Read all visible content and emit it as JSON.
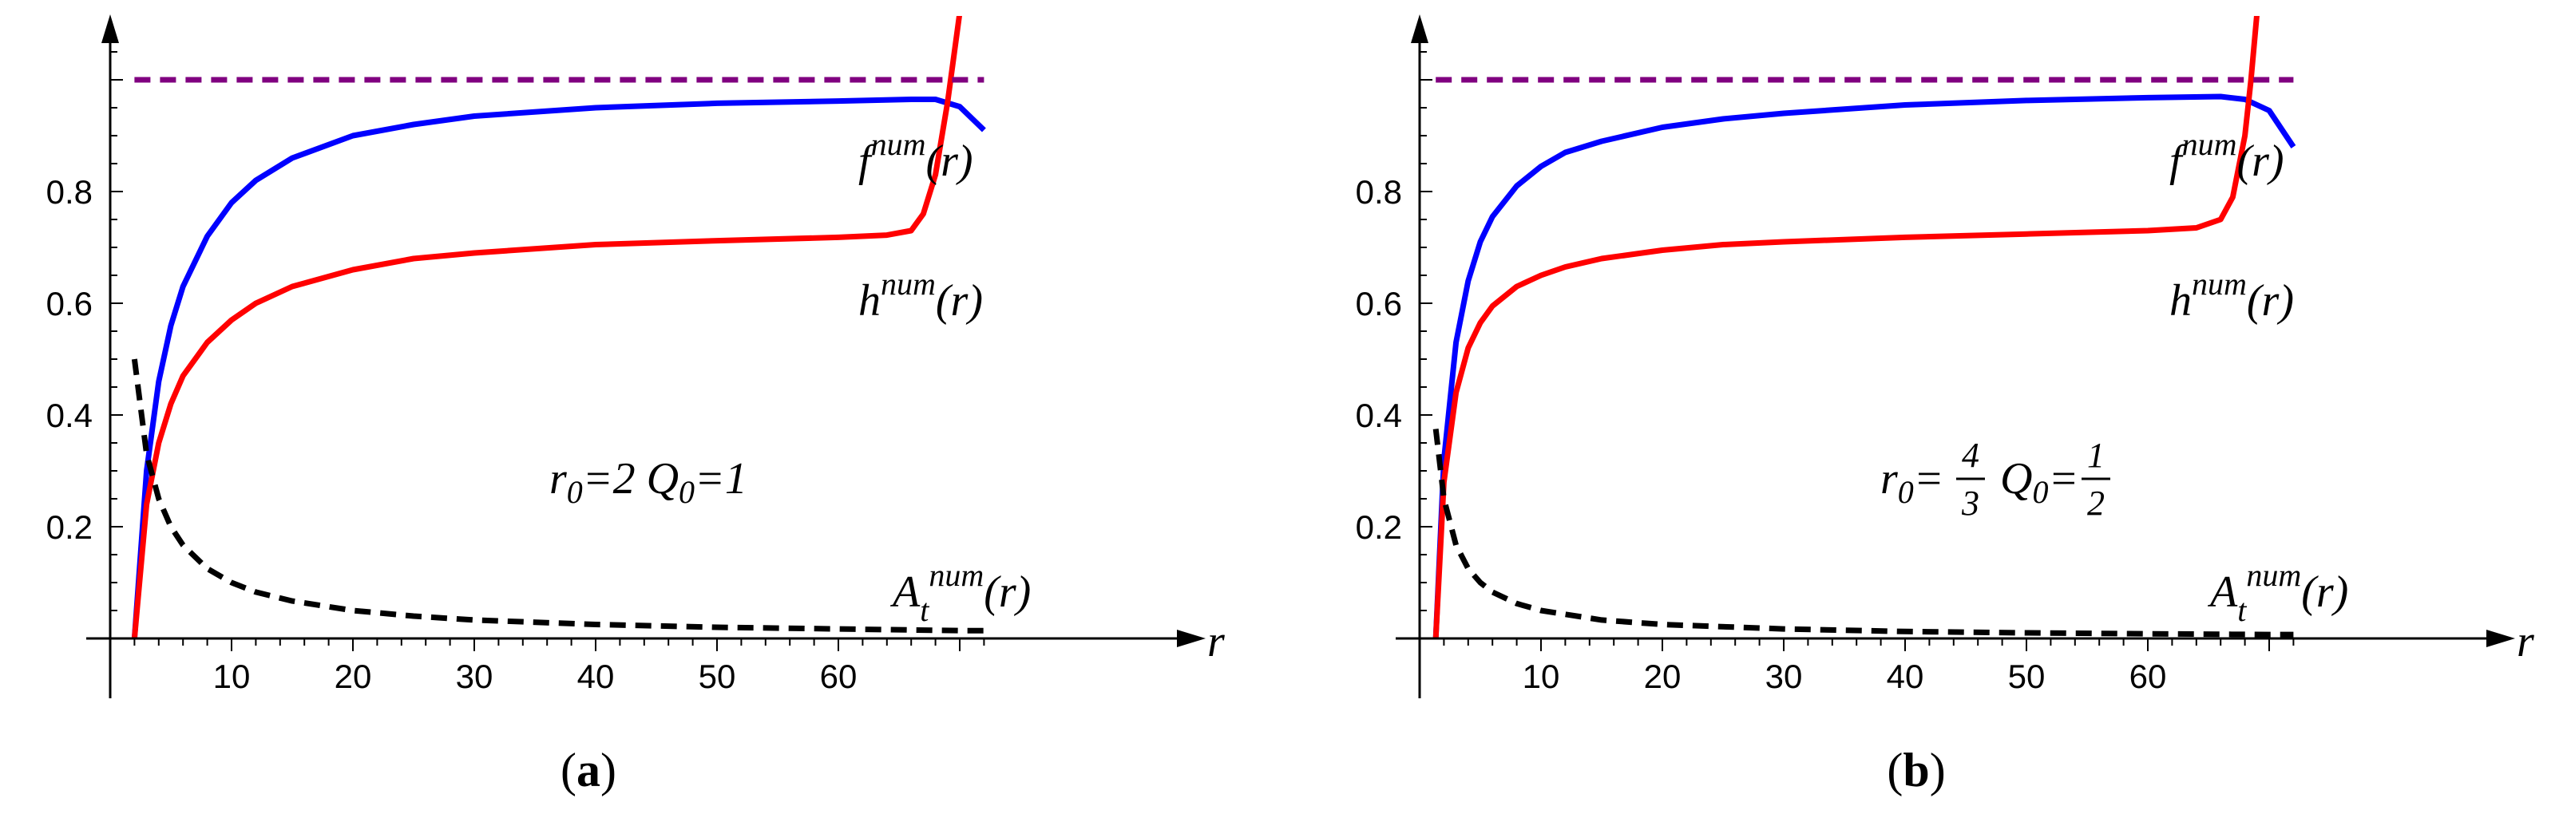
{
  "chart_data": [
    {
      "type": "line",
      "panel": "(a)",
      "panel_letter": "a",
      "xlabel": "r",
      "ylabel": "",
      "xlim": [
        0,
        78
      ],
      "ylim": [
        0,
        1.07
      ],
      "x_ticks": [
        10,
        20,
        30,
        40,
        50,
        60
      ],
      "y_ticks": [
        0.2,
        0.4,
        0.6,
        0.8
      ],
      "x_tick_labels": [
        "10",
        "20",
        "30",
        "40",
        "50",
        "60"
      ],
      "y_tick_labels": [
        "0.2",
        "0.4",
        "0.6",
        "0.8"
      ],
      "params": {
        "r0_label": "r",
        "r0_sub": "0",
        "r0_value": "=2",
        "q0_label": "Q",
        "q0_sub": "0",
        "q0_value": "=1"
      },
      "series": [
        {
          "name": "f^num(r)",
          "label_base": "f",
          "label_sup": "num",
          "label_arg": "(r)",
          "color": "#0000ff",
          "style": "solid",
          "x": [
            2,
            3,
            4,
            5,
            6,
            8,
            10,
            12,
            15,
            20,
            25,
            30,
            40,
            50,
            60,
            66,
            68,
            70,
            72
          ],
          "y": [
            0,
            0.3,
            0.46,
            0.56,
            0.63,
            0.72,
            0.78,
            0.82,
            0.86,
            0.9,
            0.92,
            0.935,
            0.95,
            0.958,
            0.962,
            0.965,
            0.965,
            0.952,
            0.91
          ]
        },
        {
          "name": "h^num(r)",
          "label_base": "h",
          "label_sup": "num",
          "label_arg": "(r)",
          "color": "#ff0000",
          "style": "solid",
          "x": [
            2,
            3,
            4,
            5,
            6,
            8,
            10,
            12,
            15,
            20,
            25,
            30,
            40,
            50,
            60,
            64,
            66,
            67,
            68,
            69,
            69.5,
            70
          ],
          "y": [
            0,
            0.24,
            0.35,
            0.42,
            0.47,
            0.53,
            0.57,
            0.6,
            0.63,
            0.66,
            0.68,
            0.69,
            0.705,
            0.712,
            0.718,
            0.722,
            0.73,
            0.76,
            0.83,
            0.96,
            1.04,
            1.12
          ]
        },
        {
          "name": "A_t^num(r)",
          "label_base": "A",
          "label_sub": "t",
          "label_sup": "num",
          "label_arg": "(r)",
          "color": "#000000",
          "style": "dashed",
          "x": [
            2,
            3,
            4,
            5,
            6,
            8,
            10,
            12,
            15,
            20,
            25,
            30,
            40,
            50,
            60,
            70,
            72
          ],
          "y": [
            0.5,
            0.33,
            0.25,
            0.2,
            0.167,
            0.125,
            0.1,
            0.083,
            0.067,
            0.05,
            0.04,
            0.033,
            0.025,
            0.02,
            0.017,
            0.014,
            0.014
          ]
        },
        {
          "name": "asymptote",
          "color": "#800080",
          "style": "dashed",
          "x": [
            2,
            72
          ],
          "y": [
            1.0,
            1.0
          ]
        }
      ]
    },
    {
      "type": "line",
      "panel": "(b)",
      "panel_letter": "b",
      "xlabel": "r",
      "ylabel": "",
      "xlim": [
        0,
        78
      ],
      "ylim": [
        0,
        1.07
      ],
      "x_ticks": [
        10,
        20,
        30,
        40,
        50,
        60
      ],
      "y_ticks": [
        0.2,
        0.4,
        0.6,
        0.8
      ],
      "x_tick_labels": [
        "10",
        "20",
        "30",
        "40",
        "50",
        "60"
      ],
      "y_tick_labels": [
        "0.2",
        "0.4",
        "0.6",
        "0.8"
      ],
      "params": {
        "r0_label": "r",
        "r0_sub": "0",
        "r0_eq": "=",
        "r0_num": "4",
        "r0_den": "3",
        "q0_label": "Q",
        "q0_sub": "0",
        "q0_eq": "=",
        "q0_num": "1",
        "q0_den": "2"
      },
      "series": [
        {
          "name": "f^num(r)",
          "label_base": "f",
          "label_sup": "num",
          "label_arg": "(r)",
          "color": "#0000ff",
          "style": "solid",
          "x": [
            1.33,
            2,
            3,
            4,
            5,
            6,
            8,
            10,
            12,
            15,
            20,
            25,
            30,
            40,
            50,
            60,
            66,
            68,
            70,
            72
          ],
          "y": [
            0,
            0.32,
            0.53,
            0.64,
            0.71,
            0.755,
            0.81,
            0.845,
            0.87,
            0.89,
            0.915,
            0.93,
            0.94,
            0.955,
            0.963,
            0.968,
            0.97,
            0.965,
            0.945,
            0.88
          ]
        },
        {
          "name": "h^num(r)",
          "label_base": "h",
          "label_sup": "num",
          "label_arg": "(r)",
          "color": "#ff0000",
          "style": "solid",
          "x": [
            1.33,
            2,
            3,
            4,
            5,
            6,
            8,
            10,
            12,
            15,
            20,
            25,
            30,
            40,
            50,
            60,
            64,
            66,
            67,
            68,
            68.5,
            69
          ],
          "y": [
            0,
            0.28,
            0.44,
            0.52,
            0.565,
            0.595,
            0.63,
            0.65,
            0.665,
            0.68,
            0.695,
            0.705,
            0.71,
            0.718,
            0.724,
            0.73,
            0.735,
            0.75,
            0.79,
            0.9,
            1.0,
            1.12
          ]
        },
        {
          "name": "A_t^num(r)",
          "label_base": "A",
          "label_sub": "t",
          "label_sup": "num",
          "label_arg": "(r)",
          "color": "#000000",
          "style": "dashed",
          "x": [
            1.33,
            2,
            3,
            4,
            5,
            6,
            8,
            10,
            15,
            20,
            30,
            40,
            50,
            60,
            70,
            72
          ],
          "y": [
            0.375,
            0.25,
            0.167,
            0.125,
            0.1,
            0.083,
            0.0625,
            0.05,
            0.033,
            0.025,
            0.017,
            0.0125,
            0.01,
            0.0083,
            0.007,
            0.007
          ]
        },
        {
          "name": "asymptote",
          "color": "#800080",
          "style": "dashed",
          "x": [
            1.33,
            72
          ],
          "y": [
            1.0,
            1.0
          ]
        }
      ]
    }
  ]
}
